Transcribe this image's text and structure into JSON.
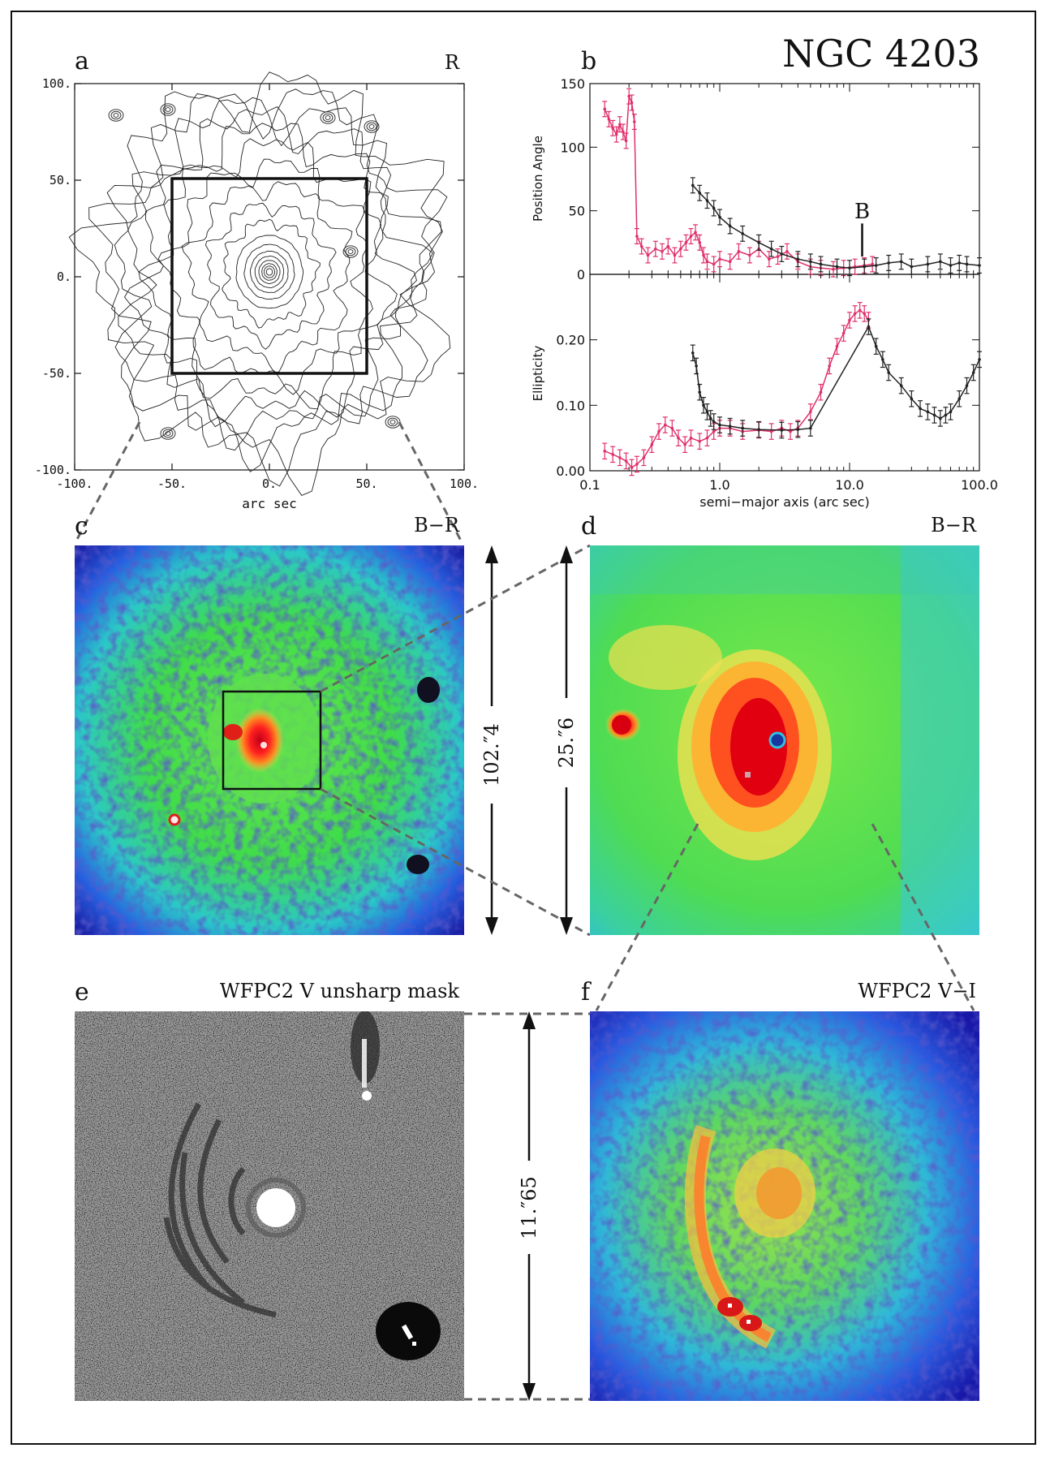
{
  "figure": {
    "title": "NGC 4203",
    "panels": {
      "a": {
        "letter": "a",
        "band": "R",
        "xlabel": "arc sec",
        "ticks": [
          "-100.",
          "-50.",
          "0.",
          "50.",
          "100."
        ]
      },
      "b": {
        "letter": "b",
        "marker_label": "B"
      },
      "c": {
        "letter": "c",
        "band": "B−R",
        "scale_label": "102.″4"
      },
      "d": {
        "letter": "d",
        "band": "B−R",
        "scale_label": "25.″6"
      },
      "e": {
        "letter": "e",
        "band": "WFPC2 V unsharp mask",
        "scale_label": "11.″65"
      },
      "f": {
        "letter": "f",
        "band": "WFPC2 V−I"
      }
    }
  },
  "chart_data": [
    {
      "type": "scatter",
      "panel": "b-top",
      "ylabel": "Position Angle",
      "xscale": "log",
      "xlim": [
        0.1,
        100.0
      ],
      "ylim": [
        0,
        150
      ],
      "yticks": [
        "0",
        "50",
        "100",
        "150"
      ],
      "marker": {
        "x": 12.5,
        "label": "B"
      },
      "series": [
        {
          "color": "#e0306a",
          "x": [
            0.13,
            0.14,
            0.15,
            0.16,
            0.17,
            0.18,
            0.19,
            0.2,
            0.21,
            0.22,
            0.23,
            0.25,
            0.28,
            0.32,
            0.36,
            0.4,
            0.45,
            0.5,
            0.55,
            0.6,
            0.65,
            0.7,
            0.75,
            0.8,
            0.9,
            1.0,
            1.2,
            1.4,
            1.7,
            2.0,
            2.4,
            2.8,
            3.3,
            4.0,
            5.0,
            6.0,
            7.5,
            9.0,
            11.0,
            13.0,
            15.0
          ],
          "y": [
            130,
            122,
            115,
            110,
            118,
            112,
            105,
            140,
            135,
            120,
            30,
            22,
            15,
            20,
            18,
            22,
            15,
            20,
            25,
            30,
            33,
            25,
            15,
            10,
            8,
            12,
            10,
            18,
            15,
            20,
            12,
            14,
            18,
            10,
            6,
            5,
            4,
            5,
            6,
            7,
            8
          ]
        },
        {
          "color": "#222222",
          "x": [
            0.62,
            0.7,
            0.8,
            0.9,
            1.0,
            1.2,
            1.5,
            2.0,
            2.5,
            3.0,
            4.0,
            5.0,
            6.0,
            8.0,
            10.0,
            13.0,
            16.0,
            20.0,
            25.0,
            30.0,
            40.0,
            50.0,
            60.0,
            70.0,
            80.0,
            100.0
          ],
          "y": [
            70,
            64,
            58,
            52,
            45,
            38,
            32,
            25,
            20,
            16,
            12,
            10,
            8,
            6,
            5,
            6,
            7,
            9,
            10,
            6,
            8,
            10,
            7,
            9,
            8,
            7
          ]
        }
      ]
    },
    {
      "type": "scatter",
      "panel": "b-bottom",
      "ylabel": "Ellipticity",
      "xlabel": "semi−major axis (arc sec)",
      "xscale": "log",
      "xlim": [
        0.1,
        100.0
      ],
      "ylim": [
        0,
        0.3
      ],
      "yticks": [
        "0.00",
        "0.10",
        "0.20"
      ],
      "xticks": [
        "0.1",
        "1.0",
        "10.0",
        "100.0"
      ],
      "series": [
        {
          "color": "#e0306a",
          "x": [
            0.13,
            0.15,
            0.17,
            0.19,
            0.21,
            0.23,
            0.26,
            0.3,
            0.34,
            0.38,
            0.43,
            0.48,
            0.54,
            0.6,
            0.7,
            0.8,
            0.9,
            1.0,
            1.2,
            1.5,
            2.0,
            2.5,
            3.0,
            3.5,
            4.0,
            5.0,
            6.0,
            7.0,
            8.0,
            9.0,
            10.0,
            11.0,
            12.0,
            13.0,
            14.0
          ],
          "y": [
            0.03,
            0.025,
            0.02,
            0.015,
            0.005,
            0.01,
            0.02,
            0.04,
            0.06,
            0.07,
            0.065,
            0.05,
            0.04,
            0.05,
            0.045,
            0.05,
            0.06,
            0.065,
            0.065,
            0.06,
            0.062,
            0.06,
            0.065,
            0.06,
            0.065,
            0.09,
            0.12,
            0.16,
            0.19,
            0.21,
            0.23,
            0.24,
            0.245,
            0.24,
            0.23
          ]
        },
        {
          "color": "#222222",
          "x": [
            0.62,
            0.66,
            0.7,
            0.75,
            0.8,
            0.85,
            0.9,
            1.0,
            1.2,
            1.5,
            2.0,
            3.0,
            4.0,
            5.0,
            14.0,
            16.0,
            18.0,
            20.0,
            25.0,
            30.0,
            35.0,
            40.0,
            45.0,
            50.0,
            55.0,
            60.0,
            70.0,
            80.0,
            90.0,
            100.0
          ],
          "y": [
            0.18,
            0.16,
            0.12,
            0.1,
            0.09,
            0.08,
            0.075,
            0.07,
            0.068,
            0.065,
            0.063,
            0.062,
            0.063,
            0.065,
            0.22,
            0.19,
            0.17,
            0.15,
            0.13,
            0.11,
            0.095,
            0.09,
            0.085,
            0.08,
            0.085,
            0.09,
            0.11,
            0.13,
            0.15,
            0.17
          ]
        }
      ]
    }
  ]
}
